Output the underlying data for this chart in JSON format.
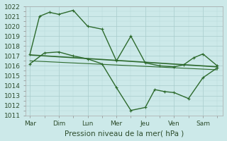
{
  "xlabel": "Pression niveau de la mer( hPa )",
  "days": [
    "Mar",
    "Dim",
    "Lun",
    "Mer",
    "Jeu",
    "Ven",
    "Sam"
  ],
  "line_top": {
    "x": [
      0,
      0.33,
      0.67,
      1.0,
      1.5,
      2.0,
      2.5,
      3.0,
      3.5,
      4.0,
      4.5,
      5.0,
      5.33,
      5.67,
      6.0,
      6.5
    ],
    "y": [
      1017.2,
      1021.0,
      1021.4,
      1021.2,
      1021.6,
      1020.0,
      1019.7,
      1016.5,
      1019.0,
      1016.3,
      1016.0,
      1015.9,
      1016.1,
      1016.8,
      1017.2,
      1016.0
    ],
    "color": "#2d6a2d",
    "lw": 1.0,
    "ms": 2.0
  },
  "line_bottom": {
    "x": [
      0,
      0.5,
      1.0,
      1.5,
      2.0,
      2.5,
      3.0,
      3.5,
      4.0,
      4.33,
      4.67,
      5.0,
      5.5,
      6.0,
      6.5
    ],
    "y": [
      1016.2,
      1017.3,
      1017.4,
      1017.0,
      1016.7,
      1016.2,
      1013.8,
      1011.5,
      1011.8,
      1013.6,
      1013.4,
      1013.3,
      1012.7,
      1014.8,
      1015.8
    ],
    "color": "#2d6a2d",
    "lw": 1.0,
    "ms": 2.0
  },
  "line_mid1": {
    "x": [
      0,
      6.5
    ],
    "y": [
      1017.1,
      1015.9
    ],
    "color": "#2d6a2d",
    "lw": 1.2
  },
  "line_mid2": {
    "x": [
      0,
      6.5
    ],
    "y": [
      1016.5,
      1015.6
    ],
    "color": "#2d6a2d",
    "lw": 0.8
  },
  "ylim": [
    1011,
    1022
  ],
  "xlim": [
    -0.15,
    6.7
  ],
  "yticks": [
    1011,
    1012,
    1013,
    1014,
    1015,
    1016,
    1017,
    1018,
    1019,
    1020,
    1021,
    1022
  ],
  "xtick_positions": [
    0,
    1,
    2,
    3,
    4,
    5,
    6
  ],
  "bg_color": "#cce9e9",
  "grid_major_color": "#a8cccc",
  "grid_minor_color": "#b8d8d8",
  "line_color": "#2d6a2d",
  "tick_label_fontsize": 6.5,
  "xlabel_fontsize": 7.5
}
